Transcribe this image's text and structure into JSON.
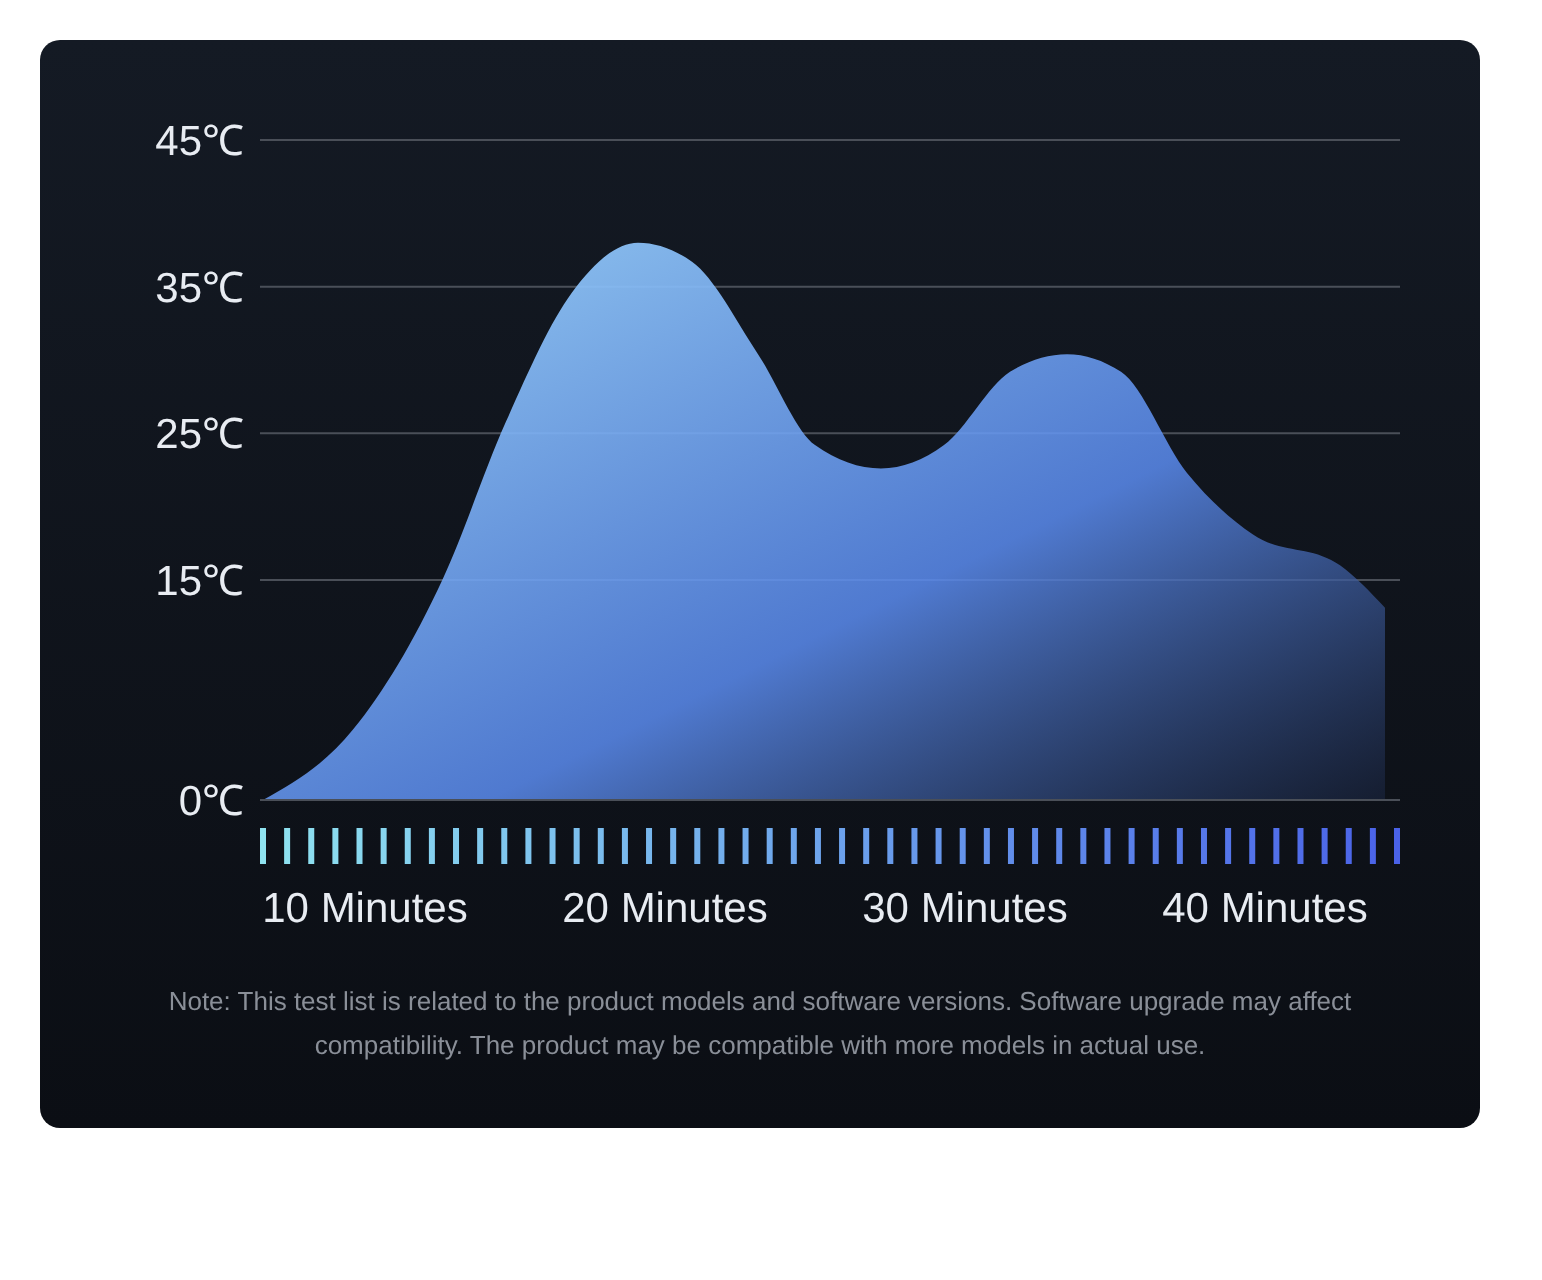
{
  "chart_data": {
    "type": "area",
    "x": [
      6.6,
      9.6,
      12.6,
      14.7,
      16.9,
      19.1,
      20.9,
      23.1,
      25,
      27.2,
      29.3,
      31.5,
      33.4,
      35.2,
      37.4,
      39.6,
      42.5,
      44
    ],
    "values": [
      0,
      4.8,
      15.1,
      25.8,
      34.6,
      38,
      36.7,
      30.4,
      24.2,
      22.6,
      24.2,
      29.2,
      30.4,
      29.2,
      22.3,
      18.1,
      16,
      13.1
    ],
    "color": "#5b8cf0",
    "xlim": [
      6.5,
      44.5
    ],
    "xticks": [
      {
        "value": 10,
        "label": "10 Minutes"
      },
      {
        "value": 20,
        "label": "20 Minutes"
      },
      {
        "value": 30,
        "label": "30 Minutes"
      },
      {
        "value": 40,
        "label": "40 Minutes"
      }
    ],
    "ylim": [
      0,
      45
    ],
    "yticks": [
      {
        "value": 0,
        "label": "0℃"
      },
      {
        "value": 15,
        "label": "15℃"
      },
      {
        "value": 25,
        "label": "25℃"
      },
      {
        "value": 35,
        "label": "35℃"
      },
      {
        "value": 45,
        "label": "45℃"
      }
    ],
    "grid": "y",
    "annotations": [
      "Note: This test list is related to the product models and software versions. Software upgrade may affect compatibility. The product may be compatible with more models in actual use."
    ]
  }
}
